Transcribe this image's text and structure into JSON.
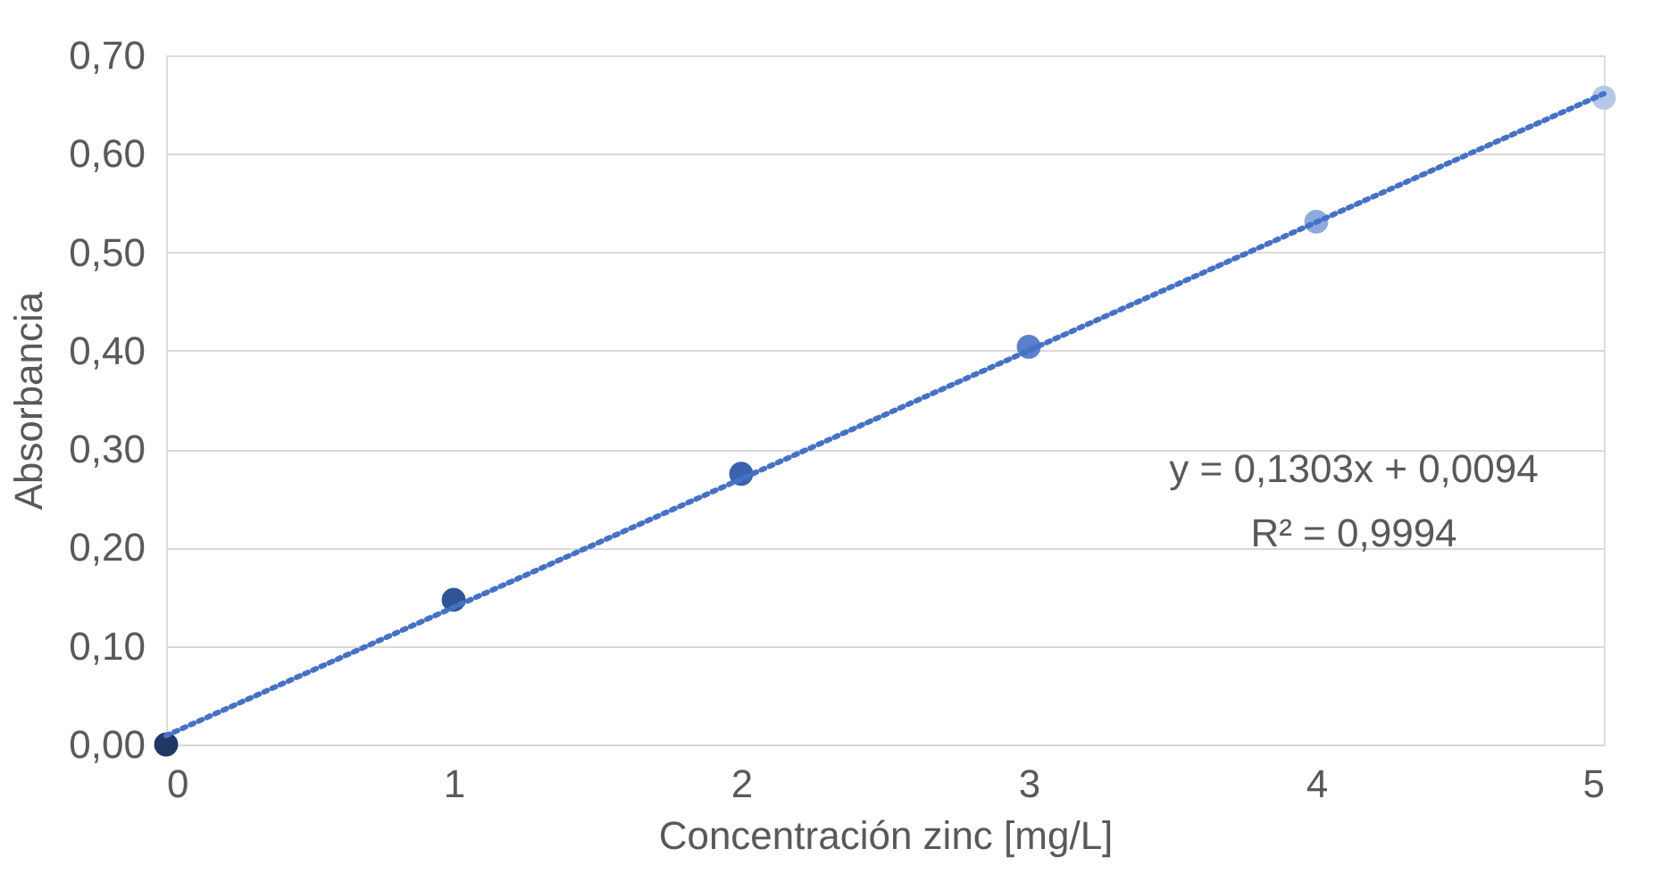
{
  "chart_data": {
    "type": "scatter",
    "xlabel": "Concentración zinc [mg/L]",
    "ylabel": "Absorbancia",
    "x": [
      0,
      1,
      2,
      3,
      4,
      5
    ],
    "series": [
      {
        "values": [
          0.0,
          0.147,
          0.275,
          0.404,
          0.531,
          0.657
        ],
        "colors": [
          "#203864",
          "#2f5597",
          "#3a62ad",
          "#5a7fcc",
          "#8eaadc",
          "#b4c7e7"
        ],
        "marker": "circle"
      },
      {
        "type": "line",
        "x": [
          0,
          5
        ],
        "values": [
          0.009,
          0.661
        ],
        "color": "#4472c4",
        "line_style": "dotted",
        "marker": "none"
      }
    ],
    "xlim": [
      0,
      5
    ],
    "xticks": [
      0,
      1,
      2,
      3,
      4,
      5
    ],
    "ylim": [
      0,
      0.7
    ],
    "yticks": [
      {
        "value": 0,
        "label": "0,00"
      },
      {
        "value": 0.1,
        "label": "0,10"
      },
      {
        "value": 0.2,
        "label": "0,20"
      },
      {
        "value": 0.3,
        "label": "0,30"
      },
      {
        "value": 0.4,
        "label": "0,40"
      },
      {
        "value": 0.5,
        "label": "0,50"
      },
      {
        "value": 0.6,
        "label": "0,60"
      },
      {
        "value": 0.7,
        "label": "0,70"
      }
    ],
    "grid": "y",
    "legend": false,
    "annotations": [
      "y = 0,1303x + 0,0094",
      "R² = 0,9994"
    ]
  }
}
